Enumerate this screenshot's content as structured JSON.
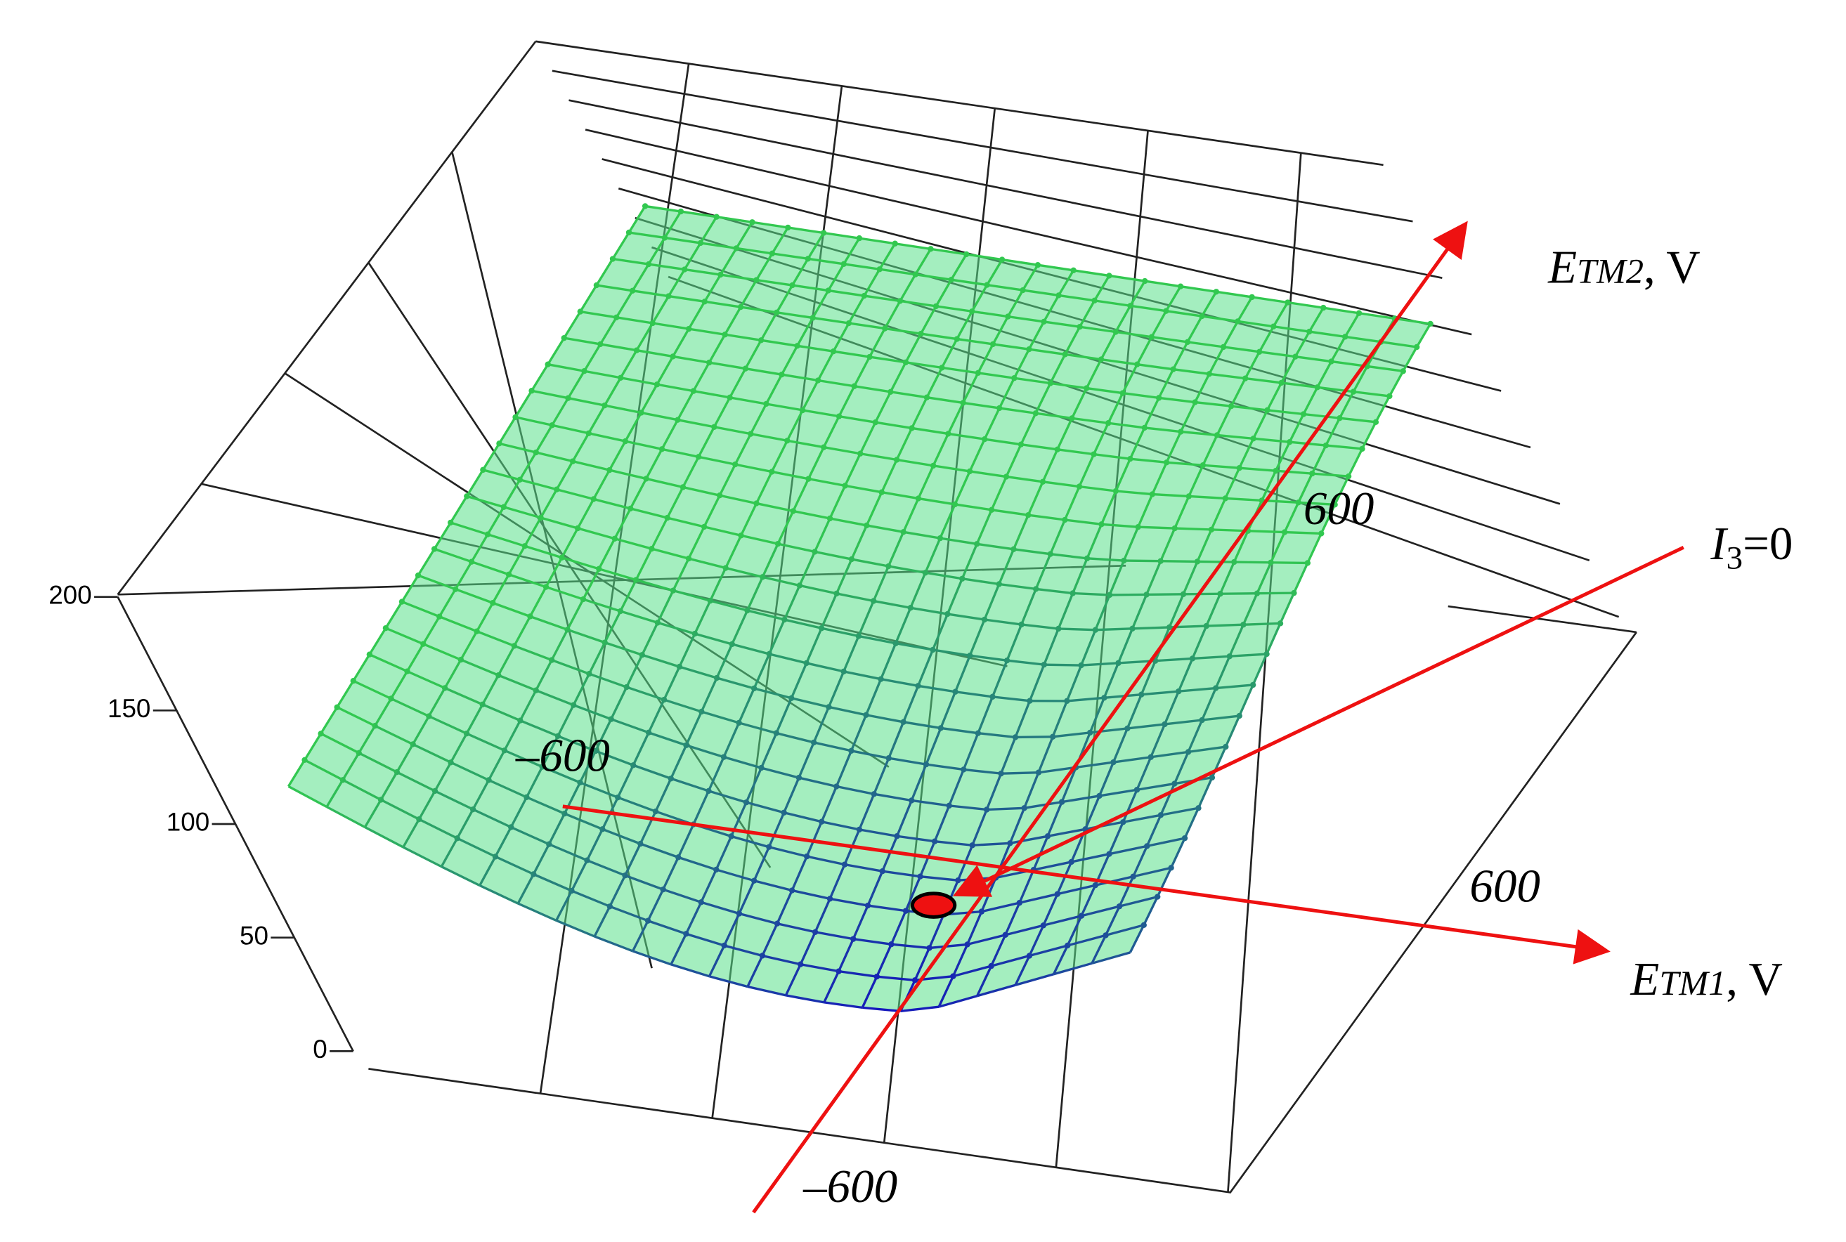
{
  "chart_data": {
    "type": "surface3d",
    "zlim": [
      0,
      200
    ],
    "zticks": [
      0,
      50,
      100,
      150,
      200
    ],
    "xlim": [
      -600,
      730
    ],
    "xticks": [
      {
        "value": -600,
        "label": "–600"
      },
      {
        "value": 600,
        "label": "600"
      }
    ],
    "ylim": [
      -650,
      1100
    ],
    "yticks": [
      {
        "value": -600,
        "label": "–600"
      },
      {
        "value": 600,
        "label": "600"
      }
    ],
    "x_label": {
      "symbol": "E",
      "subscript": "TM1",
      "unit": ", V"
    },
    "y_label": {
      "symbol": "E",
      "subscript": "TM2",
      "unit": ", V"
    },
    "annotation": {
      "symbol": "I",
      "subscript": "3",
      "text": "=0"
    },
    "axis_color": "#ee1111",
    "surface_color": "#5ae08a"
  }
}
